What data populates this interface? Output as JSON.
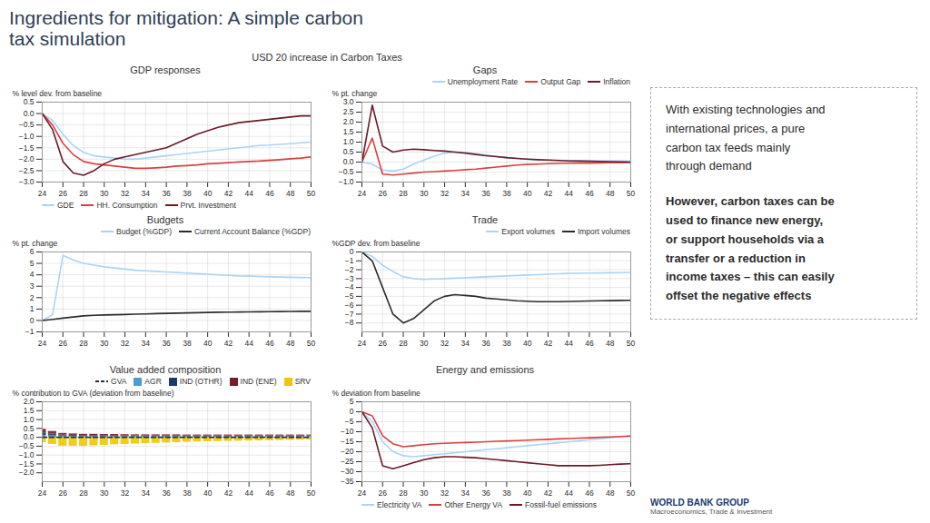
{
  "title": "Ingredients for mitigation: A simple carbon\ntax simulation",
  "subtitle": "USD 20 increase in Carbon Taxes",
  "annotations": [
    "With existing technologies and\ninternational prices, a pure\ncarbon tax feeds mainly\nthrough demand",
    "However, carbon taxes can be\nused to finance new energy,\nor support households via a\ntransfer or a reduction in\nincome taxes – this can easily\noffset the negative effects",
    "WORLD BANK GROUP",
    "Macroeconomics, Trade & Investment"
  ],
  "chart_data": [
    {
      "type": "line",
      "title": "GDP responses",
      "ylabel": "% level dev. from baseline",
      "x": [
        24,
        25,
        26,
        27,
        28,
        29,
        30,
        31,
        32,
        33,
        34,
        35,
        36,
        37,
        38,
        39,
        40,
        41,
        42,
        43,
        44,
        45,
        46,
        47,
        48,
        49,
        50
      ],
      "xlim": [
        24,
        50
      ],
      "xticks": [
        24,
        26,
        28,
        30,
        32,
        34,
        36,
        38,
        40,
        42,
        44,
        46,
        48,
        50
      ],
      "ylim": [
        -3,
        0.5
      ],
      "yticks": [
        {
          "value": -3,
          "label": "−3.0"
        },
        -2.5,
        {
          "value": -2,
          "label": "−2.0"
        },
        -1.5,
        {
          "value": -1,
          "label": "−1.0"
        },
        -0.5,
        {
          "value": 0,
          "label": "0.0"
        },
        0.5
      ],
      "grid": true,
      "legend": "lower left",
      "series": [
        {
          "name": "GDE",
          "color": "#aad4f5",
          "values": [
            0.0,
            -0.3,
            -0.9,
            -1.4,
            -1.7,
            -1.85,
            -1.9,
            -1.95,
            -2.0,
            -2.0,
            -1.95,
            -1.9,
            -1.85,
            -1.8,
            -1.75,
            -1.7,
            -1.65,
            -1.6,
            -1.55,
            -1.5,
            -1.45,
            -1.4,
            -1.38,
            -1.35,
            -1.32,
            -1.28,
            -1.25
          ]
        },
        {
          "name": "HH. Consumption",
          "color": "#d94040",
          "values": [
            0.0,
            -0.5,
            -1.3,
            -1.8,
            -2.1,
            -2.2,
            -2.25,
            -2.3,
            -2.35,
            -2.4,
            -2.4,
            -2.38,
            -2.35,
            -2.3,
            -2.28,
            -2.25,
            -2.2,
            -2.18,
            -2.15,
            -2.12,
            -2.1,
            -2.08,
            -2.05,
            -2.02,
            -1.98,
            -1.95,
            -1.9
          ]
        },
        {
          "name": "Prvt. Investment",
          "color": "#6b1a2a",
          "values": [
            0.0,
            -0.7,
            -2.1,
            -2.6,
            -2.7,
            -2.5,
            -2.2,
            -2.0,
            -1.9,
            -1.8,
            -1.7,
            -1.6,
            -1.5,
            -1.3,
            -1.1,
            -0.9,
            -0.75,
            -0.6,
            -0.5,
            -0.4,
            -0.35,
            -0.3,
            -0.25,
            -0.2,
            -0.15,
            -0.1,
            -0.1
          ]
        }
      ]
    },
    {
      "type": "line",
      "title": "Gaps",
      "ylabel": "% pt. change",
      "x": [
        24,
        25,
        26,
        27,
        28,
        29,
        30,
        31,
        32,
        33,
        34,
        35,
        36,
        37,
        38,
        39,
        40,
        41,
        42,
        43,
        44,
        45,
        46,
        47,
        48,
        49,
        50
      ],
      "xlim": [
        24,
        50
      ],
      "xticks": [
        24,
        26,
        28,
        30,
        32,
        34,
        36,
        38,
        40,
        42,
        44,
        46,
        48,
        50
      ],
      "ylim": [
        -1,
        3
      ],
      "yticks": [
        {
          "value": -1,
          "label": "−1.0"
        },
        -0.5,
        {
          "value": 0,
          "label": "0.0"
        },
        0.5,
        {
          "value": 1,
          "label": "1.0"
        },
        1.5,
        {
          "value": 2,
          "label": "2.0"
        },
        2.5,
        {
          "value": 3,
          "label": "3.0"
        }
      ],
      "grid": true,
      "legend": "upper right",
      "series": [
        {
          "name": "Unemployment Rate",
          "color": "#aad4f5",
          "values": [
            0.0,
            -0.1,
            -0.4,
            -0.45,
            -0.35,
            -0.1,
            0.1,
            0.3,
            0.45,
            0.5,
            0.48,
            0.42,
            0.35,
            0.28,
            0.22,
            0.18,
            0.14,
            0.12,
            0.1,
            0.09,
            0.08,
            0.07,
            0.07,
            0.06,
            0.06,
            0.05,
            0.05
          ]
        },
        {
          "name": "Output Gap",
          "color": "#d94040",
          "values": [
            0.0,
            1.2,
            -0.6,
            -0.65,
            -0.6,
            -0.55,
            -0.5,
            -0.48,
            -0.45,
            -0.42,
            -0.38,
            -0.35,
            -0.3,
            -0.25,
            -0.2,
            -0.15,
            -0.12,
            -0.1,
            -0.08,
            -0.07,
            -0.06,
            -0.05,
            -0.05,
            -0.04,
            -0.03,
            -0.03,
            -0.02
          ]
        },
        {
          "name": "Inflation",
          "color": "#6b1a2a",
          "values": [
            0.0,
            2.85,
            0.8,
            0.5,
            0.6,
            0.65,
            0.62,
            0.58,
            0.55,
            0.5,
            0.45,
            0.38,
            0.32,
            0.27,
            0.22,
            0.18,
            0.15,
            0.12,
            0.1,
            0.08,
            0.06,
            0.05,
            0.04,
            0.03,
            0.02,
            0.01,
            0.0
          ]
        }
      ]
    },
    {
      "type": "line",
      "title": "Budgets",
      "ylabel": "% pt. change",
      "x": [
        24,
        25,
        26,
        27,
        28,
        29,
        30,
        31,
        32,
        33,
        34,
        35,
        36,
        37,
        38,
        39,
        40,
        41,
        42,
        43,
        44,
        45,
        46,
        47,
        48,
        49,
        50
      ],
      "xlim": [
        24,
        50
      ],
      "xticks": [
        24,
        26,
        28,
        30,
        32,
        34,
        36,
        38,
        40,
        42,
        44,
        46,
        48,
        50
      ],
      "ylim": [
        -1,
        6
      ],
      "yticks": [
        -1,
        0,
        1,
        2,
        3,
        4,
        5,
        6
      ],
      "grid": true,
      "legend": "upper right",
      "series": [
        {
          "name": "Budget (%GDP)",
          "color": "#aad4f5",
          "values": [
            0.0,
            0.5,
            5.7,
            5.3,
            5.0,
            4.85,
            4.7,
            4.6,
            4.5,
            4.4,
            4.35,
            4.3,
            4.25,
            4.2,
            4.15,
            4.1,
            4.05,
            4.0,
            3.95,
            3.9,
            3.88,
            3.85,
            3.82,
            3.8,
            3.78,
            3.76,
            3.75
          ]
        },
        {
          "name": "Current Account Balance (%GDP)",
          "color": "#2c2c2c",
          "values": [
            0.0,
            0.1,
            0.2,
            0.3,
            0.4,
            0.45,
            0.48,
            0.5,
            0.52,
            0.55,
            0.57,
            0.6,
            0.62,
            0.64,
            0.66,
            0.68,
            0.7,
            0.72,
            0.73,
            0.74,
            0.75,
            0.76,
            0.77,
            0.78,
            0.79,
            0.8,
            0.8
          ]
        }
      ]
    },
    {
      "type": "line",
      "title": "Trade",
      "ylabel": "%GDP dev. from baseline",
      "x": [
        24,
        25,
        26,
        27,
        28,
        29,
        30,
        31,
        32,
        33,
        34,
        35,
        36,
        37,
        38,
        39,
        40,
        41,
        42,
        43,
        44,
        45,
        46,
        47,
        48,
        49,
        50
      ],
      "xlim": [
        24,
        50
      ],
      "xticks": [
        24,
        26,
        28,
        30,
        32,
        34,
        36,
        38,
        40,
        42,
        44,
        46,
        48,
        50
      ],
      "ylim": [
        -9,
        0
      ],
      "yticks": [
        -8,
        -7,
        -6,
        -5,
        -4,
        -3,
        -2,
        -1,
        0
      ],
      "grid": true,
      "legend": "upper right",
      "series": [
        {
          "name": "Export volumes",
          "color": "#aad4f5",
          "values": [
            0.0,
            -0.5,
            -1.5,
            -2.2,
            -2.8,
            -3.0,
            -3.1,
            -3.05,
            -3.0,
            -2.95,
            -2.9,
            -2.85,
            -2.8,
            -2.75,
            -2.7,
            -2.65,
            -2.6,
            -2.55,
            -2.5,
            -2.45,
            -2.42,
            -2.4,
            -2.38,
            -2.36,
            -2.34,
            -2.32,
            -2.3
          ]
        },
        {
          "name": "Import volumes",
          "color": "#2c2c2c",
          "values": [
            0.0,
            -1.0,
            -4.0,
            -7.0,
            -8.0,
            -7.5,
            -6.5,
            -5.5,
            -5.0,
            -4.8,
            -4.9,
            -5.0,
            -5.2,
            -5.3,
            -5.4,
            -5.5,
            -5.55,
            -5.6,
            -5.6,
            -5.6,
            -5.58,
            -5.55,
            -5.52,
            -5.5,
            -5.48,
            -5.46,
            -5.45
          ]
        }
      ]
    },
    {
      "type": "bar",
      "stacked": true,
      "title": "Value added composition",
      "ylabel": "% contribution to GVA (deviation from baseline)",
      "x": [
        24,
        25,
        26,
        27,
        28,
        29,
        30,
        31,
        32,
        33,
        34,
        35,
        36,
        37,
        38,
        39,
        40,
        41,
        42,
        43,
        44,
        45,
        46,
        47,
        48,
        49,
        50
      ],
      "xlim": [
        24,
        50
      ],
      "xticks": [
        24,
        26,
        28,
        30,
        32,
        34,
        36,
        38,
        40,
        42,
        44,
        46,
        48,
        50
      ],
      "ylim": [
        -2.5,
        2
      ],
      "yticks": [
        {
          "value": -2,
          "label": "−2.0"
        },
        -1.5,
        {
          "value": -1,
          "label": "−1.0"
        },
        -0.5,
        {
          "value": 0,
          "label": "0.0"
        },
        0.5,
        {
          "value": 1,
          "label": "1.0"
        },
        1.5,
        {
          "value": 2,
          "label": "2.0"
        }
      ],
      "grid": true,
      "legend": "upper right",
      "series": [
        {
          "name": "GVA",
          "type": "line",
          "line_style": "dashed",
          "color": "#2c2c2c",
          "values": [
            0.0,
            0.0,
            0.0,
            0.0,
            0.0,
            0.0,
            0.0,
            0.0,
            0.0,
            0.0,
            0.0,
            0.0,
            0.0,
            0.0,
            0.0,
            0.0,
            0.0,
            0.0,
            0.0,
            0.0,
            0.0,
            0.0,
            0.0,
            0.0,
            0.0,
            0.0,
            0.0
          ]
        },
        {
          "name": "AGR",
          "type": "bar",
          "color": "#4e9cd1",
          "values": [
            0.1,
            0.08,
            0.07,
            0.06,
            0.05,
            0.05,
            0.05,
            0.05,
            0.04,
            0.04,
            0.04,
            0.04,
            0.04,
            0.04,
            0.03,
            0.03,
            0.03,
            0.03,
            0.03,
            0.03,
            0.03,
            0.03,
            0.03,
            0.03,
            0.03,
            0.03,
            0.03
          ]
        },
        {
          "name": "IND (OTHR)",
          "type": "bar",
          "color": "#1a3a6b",
          "values": [
            0.15,
            0.1,
            0.05,
            0.05,
            0.05,
            0.05,
            0.05,
            0.05,
            0.05,
            0.05,
            0.05,
            0.05,
            0.05,
            0.05,
            0.05,
            0.05,
            0.05,
            0.05,
            0.05,
            0.05,
            0.05,
            0.05,
            0.05,
            0.05,
            0.05,
            0.05,
            0.05
          ]
        },
        {
          "name": "IND (ENE)",
          "type": "bar",
          "color": "#7b1a2a",
          "values": [
            0.2,
            0.15,
            0.1,
            0.08,
            0.07,
            0.07,
            0.06,
            0.06,
            0.06,
            0.05,
            0.05,
            0.05,
            0.05,
            0.05,
            0.05,
            0.05,
            0.05,
            0.05,
            0.05,
            0.05,
            0.05,
            0.05,
            0.05,
            0.05,
            0.05,
            0.05,
            0.05
          ]
        },
        {
          "name": "SRV",
          "type": "bar",
          "color": "#f0c800",
          "values": [
            -0.3,
            -0.4,
            -0.5,
            -0.5,
            -0.5,
            -0.48,
            -0.45,
            -0.42,
            -0.4,
            -0.38,
            -0.36,
            -0.34,
            -0.32,
            -0.3,
            -0.28,
            -0.26,
            -0.25,
            -0.24,
            -0.23,
            -0.22,
            -0.21,
            -0.2,
            -0.19,
            -0.18,
            -0.17,
            -0.16,
            -0.15
          ]
        }
      ]
    },
    {
      "type": "line",
      "title": "Energy and emissions",
      "ylabel": "% deviation from baseline",
      "x": [
        24,
        25,
        26,
        27,
        28,
        29,
        30,
        31,
        32,
        33,
        34,
        35,
        36,
        37,
        38,
        39,
        40,
        41,
        42,
        43,
        44,
        45,
        46,
        47,
        48,
        49,
        50
      ],
      "xlim": [
        24,
        50
      ],
      "xticks": [
        24,
        26,
        28,
        30,
        32,
        34,
        36,
        38,
        40,
        42,
        44,
        46,
        48,
        50
      ],
      "ylim": [
        -35,
        5
      ],
      "yticks": [
        -35,
        -30,
        -25,
        -20,
        -15,
        -10,
        -5,
        0,
        5
      ],
      "grid": true,
      "legend": "lower left",
      "series": [
        {
          "name": "Electricity VA",
          "color": "#aad4f5",
          "values": [
            0.0,
            -5.0,
            -15.0,
            -20.0,
            -22.0,
            -22.5,
            -22.0,
            -21.5,
            -21.0,
            -20.5,
            -20.0,
            -19.5,
            -19.0,
            -18.5,
            -18.0,
            -17.5,
            -17.0,
            -16.5,
            -16.0,
            -15.5,
            -15.0,
            -14.5,
            -14.0,
            -13.5,
            -13.0,
            -12.5,
            -12.0
          ]
        },
        {
          "name": "Other Energy VA",
          "color": "#d94040",
          "values": [
            0.0,
            -2.0,
            -12.0,
            -16.0,
            -17.5,
            -17.0,
            -16.5,
            -16.0,
            -15.8,
            -15.6,
            -15.4,
            -15.2,
            -15.0,
            -14.8,
            -14.6,
            -14.4,
            -14.2,
            -14.0,
            -13.8,
            -13.6,
            -13.4,
            -13.2,
            -13.0,
            -12.8,
            -12.6,
            -12.4,
            -12.2
          ]
        },
        {
          "name": "Fossil-fuel emissions",
          "color": "#6b1a2a",
          "values": [
            0.0,
            -8.0,
            -27.0,
            -28.5,
            -27.0,
            -25.5,
            -24.0,
            -23.0,
            -22.5,
            -22.5,
            -22.8,
            -23.0,
            -23.5,
            -24.0,
            -24.5,
            -25.0,
            -25.5,
            -26.0,
            -26.5,
            -27.0,
            -27.0,
            -27.0,
            -27.0,
            -26.8,
            -26.5,
            -26.2,
            -26.0
          ]
        }
      ]
    }
  ]
}
